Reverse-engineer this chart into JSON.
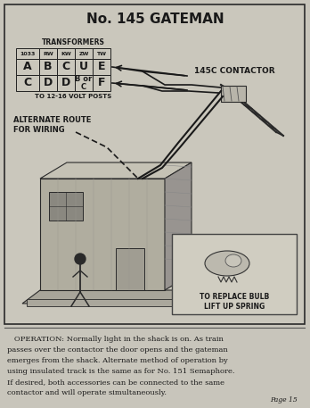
{
  "title": "No. 145 GATEMAN",
  "bg_outer": "#c8c5bb",
  "bg_inner": "#cac7bc",
  "border_color": "#2a2a2a",
  "text_color": "#1a1a1a",
  "transformers_label": "TRANSFORMERS",
  "transformer_headers": [
    "1033",
    "RW",
    "KW",
    "ZW",
    "TW"
  ],
  "transformer_row1": [
    "A",
    "B",
    "C",
    "U",
    "E"
  ],
  "transformer_row2": [
    "C",
    "D",
    "D",
    "B or\nC",
    "F"
  ],
  "volt_posts_label": "TO 12-16 VOLT POSTS",
  "alternate_route_label": "ALTERNATE ROUTE\nFOR WIRING",
  "contactor_label": "145C CONTACTOR",
  "replace_bulb_label": "TO REPLACE BULB\nLIFT UP SPRING",
  "op_lines": [
    "   OPERATION: Normally light in the shack is on. As train",
    "passes over the contactor the door opens and the gateman",
    "emerges from the shack. Alternate method of operation by",
    "using insulated track is the same as for No. 151 Semaphore.",
    "If desired, both accessories can be connected to the same",
    "contactor and will operate simultaneously."
  ],
  "page_label": "Page 15"
}
